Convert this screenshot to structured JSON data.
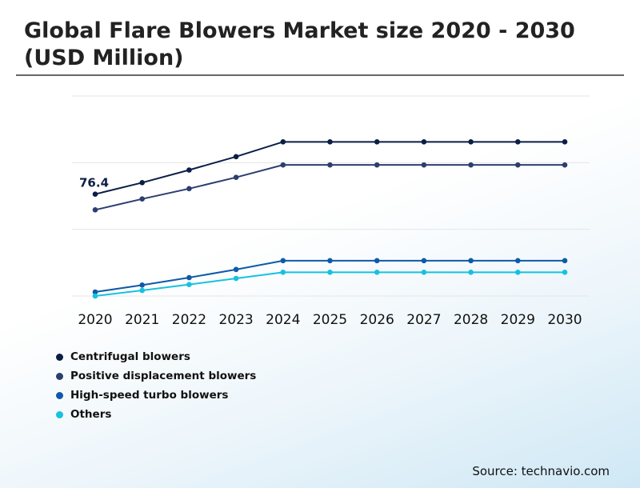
{
  "title": "Global Flare Blowers Market size 2020 - 2030 (USD Million)",
  "source": "Source: technavio.com",
  "chart_data": {
    "type": "line",
    "title": "Global Flare Blowers Market size 2020 - 2030 (USD Million)",
    "x": [
      "2020",
      "2021",
      "2022",
      "2023",
      "2024",
      "2025",
      "2026",
      "2027",
      "2028",
      "2029",
      "2030"
    ],
    "ylim": [
      0,
      150
    ],
    "grid": true,
    "legend_position": "bottom-left",
    "series": [
      {
        "name": "Centrifugal blowers",
        "color": "#0b1f45",
        "values": [
          76.4,
          85.0,
          94.5,
          104.5,
          115.6,
          115.6,
          115.6,
          115.6,
          115.6,
          115.6,
          115.6
        ]
      },
      {
        "name": "Positive displacement blowers",
        "color": "#2c3e6e",
        "values": [
          64.6,
          72.8,
          80.5,
          89.0,
          98.3,
          98.3,
          98.3,
          98.3,
          98.3,
          98.3,
          98.3
        ]
      },
      {
        "name": "High-speed turbo blowers",
        "color": "#0f5aa8",
        "values": [
          3.0,
          8.2,
          13.8,
          19.9,
          26.5,
          26.5,
          26.5,
          26.5,
          26.5,
          26.5,
          26.5
        ]
      },
      {
        "name": "Others",
        "color": "#17c1e0",
        "values": [
          0.0,
          4.2,
          8.6,
          13.2,
          17.8,
          17.8,
          17.8,
          17.8,
          17.8,
          17.8,
          17.8
        ]
      }
    ],
    "annotations": [
      {
        "series": 0,
        "index": 0,
        "label": "76.4"
      }
    ]
  }
}
